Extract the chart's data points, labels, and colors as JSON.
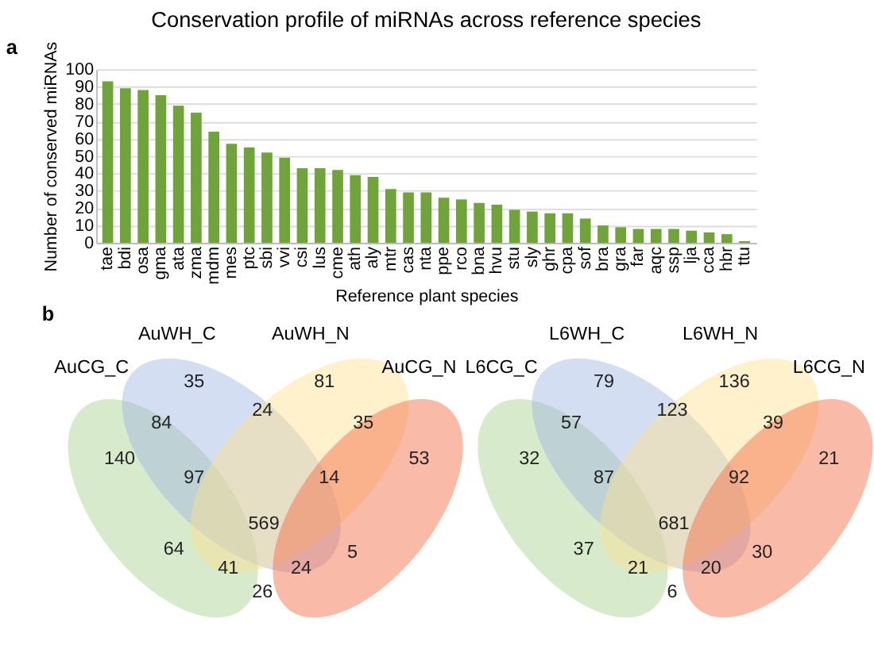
{
  "chart_data": [
    {
      "type": "bar",
      "title": "Conservation profile of miRNAs across reference species",
      "xlabel": "Reference plant species",
      "ylabel": "Number of conserved miRNAs",
      "categories": [
        "tae",
        "bdi",
        "osa",
        "gma",
        "ata",
        "zma",
        "mdm",
        "mes",
        "ptc",
        "sbi",
        "vvi",
        "csi",
        "lus",
        "cme",
        "ath",
        "aly",
        "mtr",
        "cas",
        "nta",
        "ppe",
        "rco",
        "bna",
        "hvu",
        "stu",
        "sly",
        "ghr",
        "cpa",
        "sof",
        "bra",
        "gra",
        "far",
        "aqc",
        "ssp",
        "lja",
        "cca",
        "hbr",
        "ttu"
      ],
      "values": [
        93,
        89,
        88,
        85,
        79,
        75,
        64,
        57,
        55,
        52,
        49,
        43,
        43,
        42,
        39,
        38,
        31,
        29,
        29,
        26,
        25,
        23,
        22,
        19,
        18,
        17,
        17,
        14,
        10,
        9,
        8,
        8,
        8,
        7,
        6,
        5,
        1
      ],
      "color": "#70a33a",
      "ylim": [
        0,
        100
      ],
      "yticks": [
        0,
        10,
        20,
        30,
        40,
        50,
        60,
        70,
        80,
        90,
        100
      ],
      "grid": "y",
      "annotations": [
        "a"
      ]
    },
    {
      "type": "other",
      "categories": [
        "AuCG_C",
        "AuWH_C",
        "AuWH_N",
        "AuCG_N"
      ],
      "colors": [
        "#a9d18e",
        "#9fb6e3",
        "#fde08f",
        "#f4673f"
      ],
      "annotations": [
        "b",
        "35",
        "81",
        "84",
        "24",
        "35",
        "140",
        "97",
        "14",
        "53",
        "569",
        "64",
        "5",
        "41",
        "24",
        "26"
      ]
    },
    {
      "type": "other",
      "categories": [
        "L6CG_C",
        "L6WH_C",
        "L6WH_N",
        "L6CG_N"
      ],
      "colors": [
        "#a9d18e",
        "#9fb6e3",
        "#fde08f",
        "#f4673f"
      ],
      "annotations": [
        "79",
        "136",
        "57",
        "123",
        "39",
        "32",
        "87",
        "92",
        "21",
        "681",
        "37",
        "30",
        "21",
        "20",
        "6"
      ]
    }
  ]
}
